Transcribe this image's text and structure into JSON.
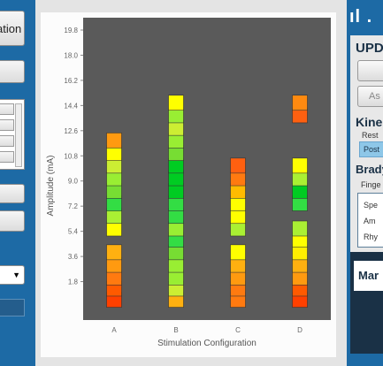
{
  "left_panel": {
    "top_button_label": "ation"
  },
  "right_panel": {
    "logo_text": "ıl .",
    "update_heading": "UPD",
    "button_2_label": "As",
    "kinetic_heading": "Kine",
    "rest_label": "Rest",
    "post_label": "Post",
    "brady_heading": "Brady",
    "finger_label": "Finge",
    "options": [
      "Spe",
      "Am",
      "Rhy"
    ],
    "mar_label": "Mar"
  },
  "chart_data": {
    "type": "heatmap",
    "title": "",
    "xlabel": "Stimulation Configuration",
    "ylabel": "Amplitude (mA)",
    "categories": [
      "A",
      "B",
      "C",
      "D"
    ],
    "y_ticks": [
      "19.8",
      "18.0",
      "16.2",
      "14.4",
      "12.6",
      "10.8",
      "9.0",
      "7.2",
      "5.4",
      "3.6",
      "1.8"
    ],
    "ylim": [
      0,
      19.8
    ],
    "grid": false,
    "columns": [
      {
        "category": "A",
        "cells": [
          {
            "y": 0.5,
            "color": "#ff4000"
          },
          {
            "y": 1.3,
            "color": "#ff5a00"
          },
          {
            "y": 2.1,
            "color": "#ff7a10"
          },
          {
            "y": 3.0,
            "color": "#ff9a10"
          },
          {
            "y": 3.9,
            "color": "#ffb010"
          },
          {
            "y": 5.6,
            "color": "#ffff00"
          },
          {
            "y": 6.5,
            "color": "#aaf033"
          },
          {
            "y": 7.4,
            "color": "#33dd44"
          },
          {
            "y": 8.3,
            "color": "#77dd33"
          },
          {
            "y": 9.2,
            "color": "#99ee33"
          },
          {
            "y": 10.1,
            "color": "#ccee33"
          },
          {
            "y": 11.0,
            "color": "#ffff00"
          },
          {
            "y": 11.9,
            "color": "#ff9a10"
          }
        ]
      },
      {
        "category": "B",
        "cells": [
          {
            "y": 0.5,
            "color": "#ffb010"
          },
          {
            "y": 1.3,
            "color": "#ccee33"
          },
          {
            "y": 2.1,
            "color": "#99ee33"
          },
          {
            "y": 3.0,
            "color": "#99ee33"
          },
          {
            "y": 3.9,
            "color": "#77dd33"
          },
          {
            "y": 4.8,
            "color": "#33dd44"
          },
          {
            "y": 5.6,
            "color": "#99ee33"
          },
          {
            "y": 6.5,
            "color": "#33dd44"
          },
          {
            "y": 7.4,
            "color": "#33dd44"
          },
          {
            "y": 8.3,
            "color": "#00cc22"
          },
          {
            "y": 9.2,
            "color": "#00cc22"
          },
          {
            "y": 10.1,
            "color": "#00cc22"
          },
          {
            "y": 11.0,
            "color": "#77dd33"
          },
          {
            "y": 11.9,
            "color": "#99ee33"
          },
          {
            "y": 12.8,
            "color": "#ccee33"
          },
          {
            "y": 13.7,
            "color": "#99ee33"
          },
          {
            "y": 14.6,
            "color": "#ffff00"
          }
        ]
      },
      {
        "category": "C",
        "cells": [
          {
            "y": 0.5,
            "color": "#ff7a10"
          },
          {
            "y": 1.3,
            "color": "#ff7a10"
          },
          {
            "y": 2.1,
            "color": "#ff9a10"
          },
          {
            "y": 3.0,
            "color": "#ffb010"
          },
          {
            "y": 3.9,
            "color": "#ffff00"
          },
          {
            "y": 5.6,
            "color": "#aaf033"
          },
          {
            "y": 6.5,
            "color": "#ffff00"
          },
          {
            "y": 7.4,
            "color": "#ffff00"
          },
          {
            "y": 8.3,
            "color": "#ffbb00"
          },
          {
            "y": 9.2,
            "color": "#ff7a10"
          },
          {
            "y": 10.1,
            "color": "#ff6010"
          }
        ]
      },
      {
        "category": "D",
        "cells": [
          {
            "y": 0.5,
            "color": "#ff4000"
          },
          {
            "y": 1.3,
            "color": "#ff5a00"
          },
          {
            "y": 2.1,
            "color": "#ff9a10"
          },
          {
            "y": 3.0,
            "color": "#ffb010"
          },
          {
            "y": 3.9,
            "color": "#ffee00"
          },
          {
            "y": 4.8,
            "color": "#ffff00"
          },
          {
            "y": 5.6,
            "color": "#aaf033"
          },
          {
            "y": 7.4,
            "color": "#33dd44"
          },
          {
            "y": 8.3,
            "color": "#00cc22"
          },
          {
            "y": 9.2,
            "color": "#aaf033"
          },
          {
            "y": 10.1,
            "color": "#ffff00"
          },
          {
            "y": 13.7,
            "color": "#ff6010"
          },
          {
            "y": 14.6,
            "color": "#ff8a10"
          }
        ]
      }
    ]
  }
}
